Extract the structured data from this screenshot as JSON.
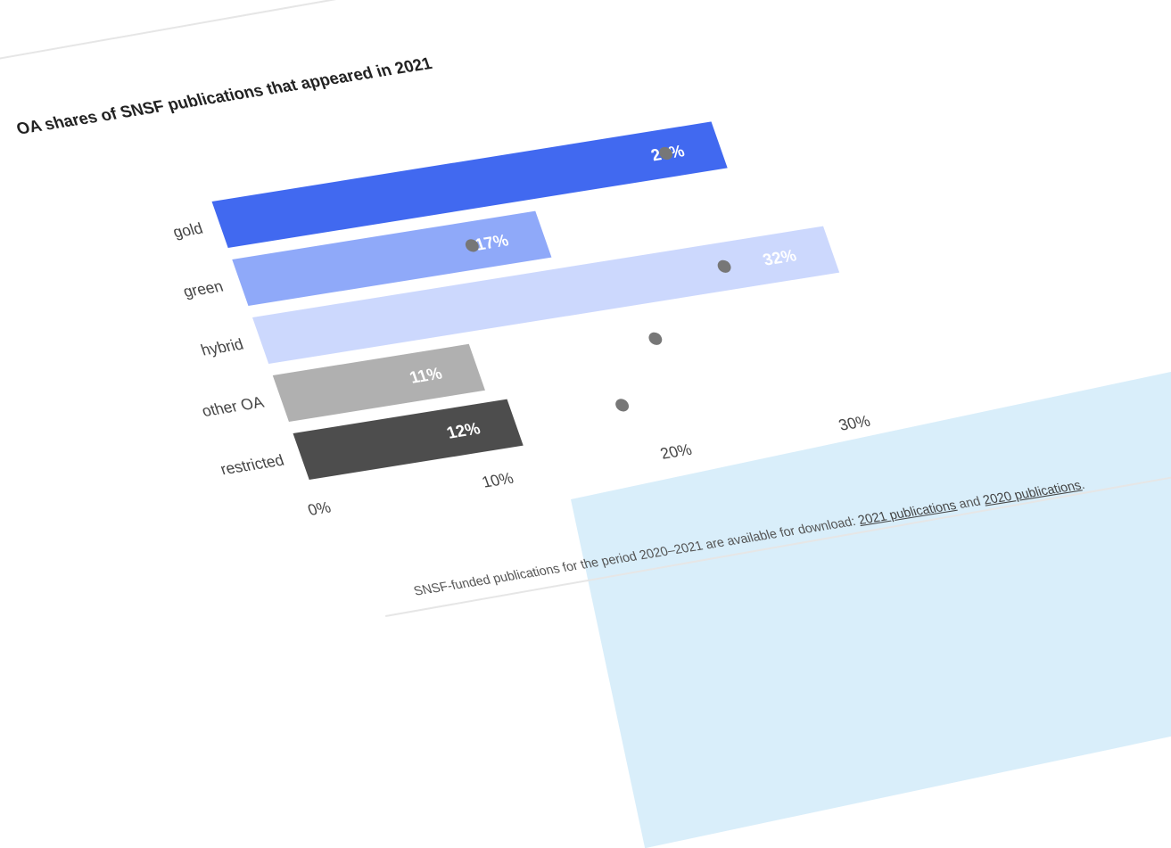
{
  "page": {
    "footer_text": "SNSF-funded publications for the period 2020–2021 are available for download:",
    "link_2021": "2021 publications",
    "and_text": "and",
    "link_2020": "2020 publications",
    "period": "."
  },
  "chart_data": {
    "type": "bar",
    "orientation": "horizontal",
    "title": "OA shares of SNSF publications that appeared in 2021",
    "categories": [
      "gold",
      "green",
      "hybrid",
      "other OA",
      "restricted"
    ],
    "values": [
      28,
      17,
      32,
      11,
      12
    ],
    "value_labels": [
      "28%",
      "17%",
      "32%",
      "11%",
      "12%"
    ],
    "comparison_markers": [
      25,
      13,
      26,
      21,
      18
    ],
    "colors": [
      "#4169f0",
      "#8fa9f9",
      "#ccd8fd",
      "#b0b0b0",
      "#4d4d4d"
    ],
    "label_colors": [
      "#ffffff",
      "#ffffff",
      "#ffffff",
      "#ffffff",
      "#ffffff"
    ],
    "marker_color": "#777777",
    "xlim": [
      0,
      35
    ],
    "x_ticks": [
      0,
      10,
      20,
      30
    ],
    "x_tick_labels": [
      "0%",
      "10%",
      "20%",
      "30%"
    ],
    "grid": false
  }
}
